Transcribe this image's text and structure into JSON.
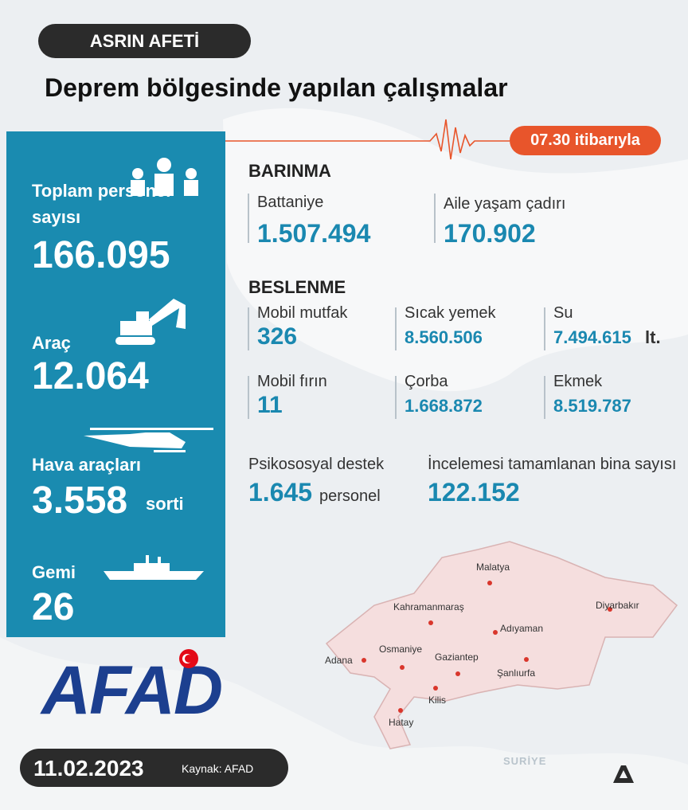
{
  "header": {
    "tag": "ASRIN AFETİ",
    "title": "Deprem bölgesinde yapılan çalışmalar",
    "time": "07.30 itibarıyla"
  },
  "sidebar": {
    "items": [
      {
        "label": "Toplam personel sayısı",
        "value": "166.095"
      },
      {
        "label": "Araç",
        "value": "12.064"
      },
      {
        "label": "Hava araçları",
        "value": "3.558",
        "unit": "sorti"
      },
      {
        "label": "Gemi",
        "value": "26"
      }
    ]
  },
  "barinma": {
    "title": "BARINMA",
    "items": [
      {
        "label": "Battaniye",
        "value": "1.507.494"
      },
      {
        "label": "Aile yaşam çadırı",
        "value": "170.902"
      }
    ]
  },
  "beslenme": {
    "title": "BESLENME",
    "items": [
      {
        "label": "Mobil mutfak",
        "value": "326"
      },
      {
        "label": "Sıcak yemek",
        "value": "8.560.506"
      },
      {
        "label": "Su",
        "value": "7.494.615",
        "unit": "lt."
      },
      {
        "label": "Mobil fırın",
        "value": "11"
      },
      {
        "label": "Çorba",
        "value": "1.668.872"
      },
      {
        "label": "Ekmek",
        "value": "8.519.787"
      }
    ]
  },
  "others": [
    {
      "label": "Psikososyal destek",
      "value": "1.645",
      "unit": "personel"
    },
    {
      "label": "İncelemesi tamamlanan bina sayısı",
      "value": "122.152"
    }
  ],
  "map": {
    "cities": [
      "Malatya",
      "Diyarbakır",
      "Kahramanmaraş",
      "Adıyaman",
      "Adana",
      "Osmaniye",
      "Gaziantep",
      "Şanlıurfa",
      "Kilis",
      "Hatay"
    ],
    "country": "SURİYE"
  },
  "footer": {
    "logo": "AFAD",
    "date": "11.02.2023",
    "source": "Kaynak: AFAD"
  }
}
